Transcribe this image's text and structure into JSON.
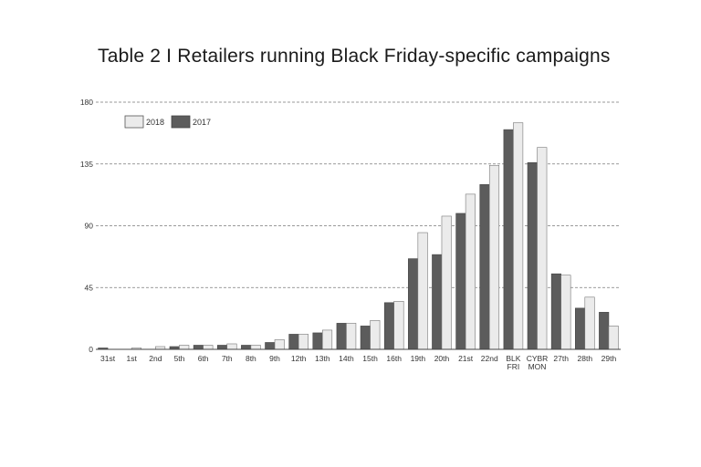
{
  "chart_data": {
    "type": "bar",
    "title": "Table 2 I Retailers running Black Friday-specific campaigns",
    "xlabel": "",
    "ylabel": "",
    "ylim": [
      0,
      180
    ],
    "yticks": [
      0,
      45,
      90,
      135,
      180
    ],
    "grid": true,
    "legend": "top-left",
    "categories": [
      "31st",
      "1st",
      "2nd",
      "5th",
      "6th",
      "7th",
      "8th",
      "9th",
      "12th",
      "13th",
      "14th",
      "15th",
      "16th",
      "19th",
      "20th",
      "21st",
      "22nd",
      "BLK FRI",
      "CYBR MON",
      "27th",
      "28th",
      "29th"
    ],
    "series": [
      {
        "name": "2017",
        "color": "#5c5c5c",
        "values": [
          1,
          0,
          0,
          2,
          3,
          3,
          3,
          5,
          11,
          12,
          19,
          17,
          34,
          66,
          69,
          99,
          120,
          160,
          136,
          55,
          30,
          27
        ]
      },
      {
        "name": "2018",
        "color": "#ebebeb",
        "values": [
          0,
          1,
          2,
          3,
          3,
          4,
          3,
          7,
          11,
          14,
          19,
          21,
          35,
          85,
          97,
          113,
          134,
          165,
          147,
          54,
          38,
          17
        ]
      }
    ]
  }
}
